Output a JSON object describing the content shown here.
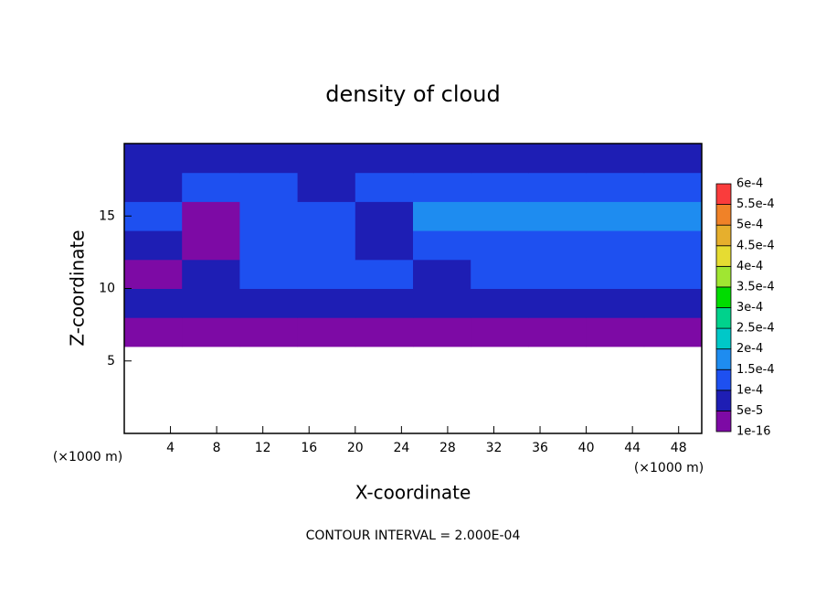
{
  "chart_data": {
    "type": "contour",
    "title": "density of cloud",
    "x_label": "X-coordinate",
    "y_label": "Z-coordinate",
    "x_unit": "(×1000 m)",
    "y_unit": "(×1000 m)",
    "footnote": "CONTOUR INTERVAL = 2.000E-04",
    "xlim": [
      0,
      50
    ],
    "ylim": [
      0,
      20
    ],
    "xticks": [
      4,
      8,
      12,
      16,
      20,
      24,
      28,
      32,
      36,
      40,
      44,
      48
    ],
    "yticks": [
      5,
      10,
      15
    ],
    "field": {
      "x": [
        2.5,
        7.5,
        12.5,
        17.5,
        22.5,
        27.5,
        32.5,
        37.5,
        42.5,
        47.5
      ],
      "y": [
        1,
        3,
        5,
        7,
        9,
        11,
        13,
        15,
        17,
        19
      ],
      "z": [
        [
          null,
          null,
          null,
          null,
          null,
          null,
          null,
          null,
          null,
          null
        ],
        [
          null,
          null,
          null,
          null,
          null,
          null,
          null,
          null,
          null,
          null
        ],
        [
          null,
          null,
          null,
          null,
          null,
          null,
          null,
          null,
          null,
          null
        ],
        [
          2e-05,
          2e-05,
          2e-05,
          2e-05,
          2e-05,
          2e-05,
          2e-05,
          2e-05,
          2e-05,
          2e-05
        ],
        [
          7e-05,
          7e-05,
          8e-05,
          8e-05,
          8e-05,
          6e-05,
          7e-05,
          8e-05,
          8e-05,
          8e-05
        ],
        [
          3e-05,
          9e-05,
          0.00011,
          0.00011,
          0.00011,
          8e-05,
          0.00011,
          0.00011,
          0.00011,
          0.00011
        ],
        [
          6e-05,
          4e-05,
          0.00012,
          0.00012,
          7e-05,
          0.00012,
          0.00013,
          0.00013,
          0.00013,
          0.00013
        ],
        [
          0.0001,
          4e-05,
          0.00012,
          0.00012,
          8e-05,
          0.00016,
          0.00016,
          0.00016,
          0.00015,
          0.00016
        ],
        [
          8e-05,
          0.00012,
          0.00012,
          8e-05,
          0.00013,
          0.00014,
          0.00014,
          0.00014,
          0.00014,
          0.00013
        ],
        [
          8e-05,
          9e-05,
          8e-05,
          9e-05,
          9e-05,
          9e-05,
          9e-05,
          9e-05,
          9e-05,
          7e-05
        ]
      ]
    },
    "levels": [
      {
        "value": 1e-16,
        "label": "1e-16"
      },
      {
        "value": 5e-05,
        "label": "5e-5"
      },
      {
        "value": 0.0001,
        "label": "1e-4"
      },
      {
        "value": 0.00015,
        "label": "1.5e-4"
      },
      {
        "value": 0.0002,
        "label": "2e-4"
      },
      {
        "value": 0.00025,
        "label": "2.5e-4"
      },
      {
        "value": 0.0003,
        "label": "3e-4"
      },
      {
        "value": 0.00035,
        "label": "3.5e-4"
      },
      {
        "value": 0.0004,
        "label": "4e-4"
      },
      {
        "value": 0.00045,
        "label": "4.5e-4"
      },
      {
        "value": 0.0005,
        "label": "5e-4"
      },
      {
        "value": 0.00055,
        "label": "5.5e-4"
      },
      {
        "value": 0.0006,
        "label": "6e-4"
      }
    ],
    "colors": [
      "#7d0aa5",
      "#1e1eb4",
      "#1e50f0",
      "#1e8cf0",
      "#00c8c8",
      "#00d28c",
      "#00dc00",
      "#a0e632",
      "#e6dc32",
      "#e6af2d",
      "#f08228",
      "#fa3c3c",
      "#f08080"
    ]
  }
}
